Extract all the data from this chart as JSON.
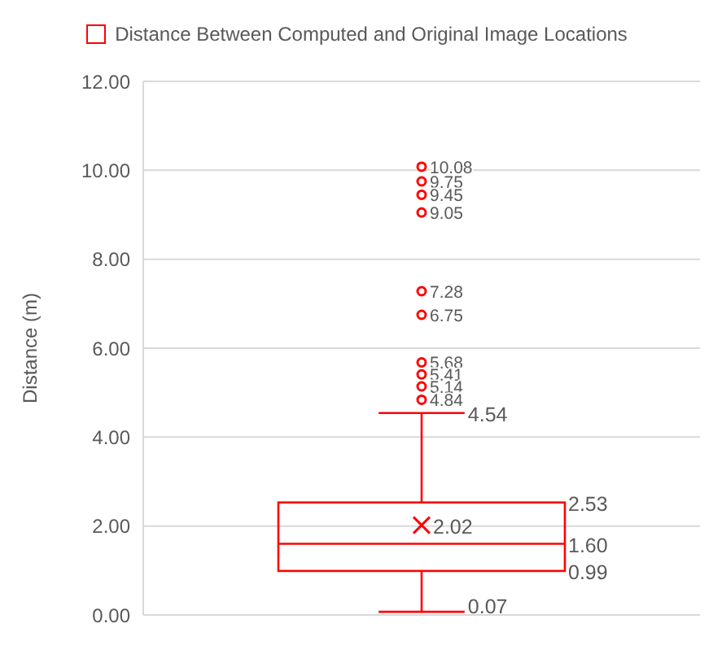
{
  "chart_data": {
    "type": "box",
    "ylabel": "Distance (m)",
    "categories": [
      null
    ],
    "series": [
      {
        "name": "Distance Between Computed and Original Image Locations",
        "color": "#ff0000",
        "boxes": [
          {
            "low": 0.07,
            "q1": 0.99,
            "median": 1.6,
            "q3": 2.53,
            "high": 4.54,
            "mean": 2.02,
            "outliers": [
              10.08,
              9.75,
              9.45,
              9.05,
              7.28,
              6.75,
              5.68,
              5.41,
              5.14,
              4.84
            ]
          }
        ]
      }
    ],
    "ylim": [
      0,
      12
    ],
    "yticks": [
      {
        "value": 0,
        "label": "0.00"
      },
      {
        "value": 2,
        "label": "2.00"
      },
      {
        "value": 4,
        "label": "4.00"
      },
      {
        "value": 6,
        "label": "6.00"
      },
      {
        "value": 8,
        "label": "8.00"
      },
      {
        "value": 10,
        "label": "10.00"
      },
      {
        "value": 12,
        "label": "12.00"
      }
    ],
    "annotations": [
      "10.08",
      "9.75",
      "9.45",
      "9.05",
      "7.28",
      "6.75",
      "5.68",
      "5.41",
      "5.14",
      "4.84",
      "4.54",
      "2.53",
      "2.02",
      "1.60",
      "0.99",
      "0.07"
    ],
    "grid": "y",
    "legend": "top"
  }
}
